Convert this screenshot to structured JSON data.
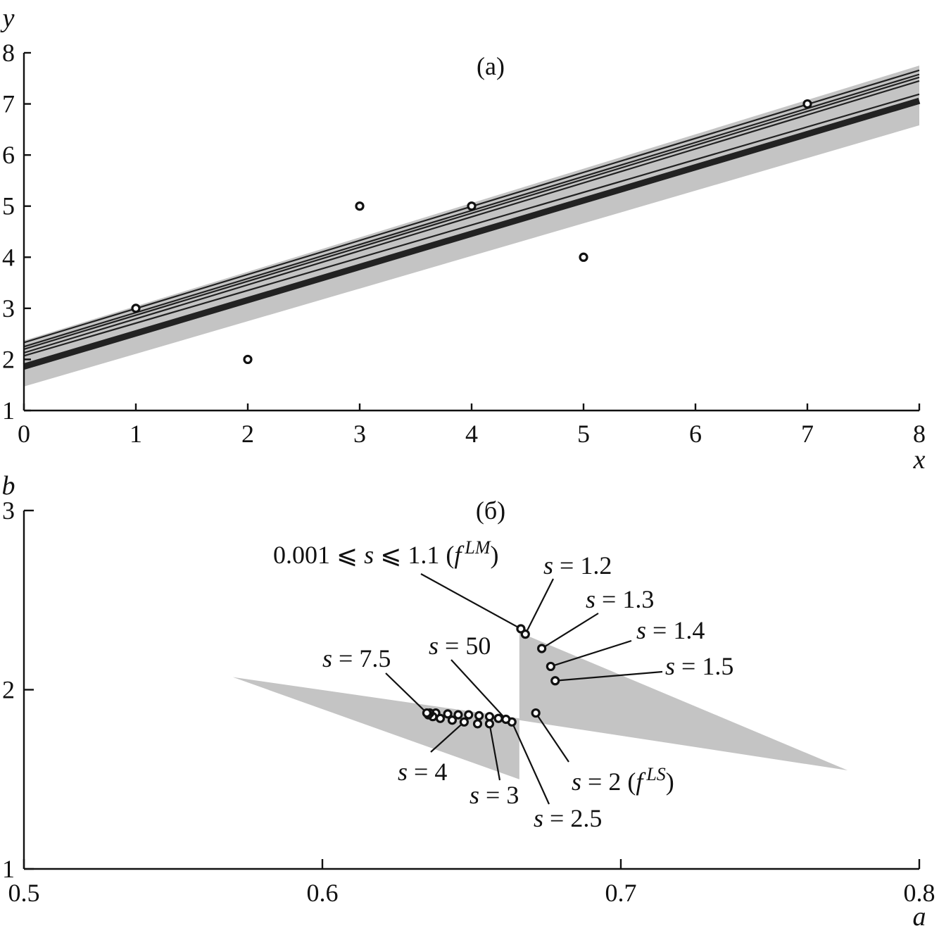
{
  "chart_data": [
    {
      "type": "scatter",
      "title": "(a)",
      "xlabel": "x",
      "ylabel": "y",
      "xlim": [
        0,
        8
      ],
      "ylim": [
        1,
        8
      ],
      "xticks": [
        0,
        1,
        2,
        3,
        4,
        5,
        6,
        7,
        8
      ],
      "yticks": [
        1,
        2,
        3,
        4,
        5,
        6,
        7,
        8
      ],
      "grid": false,
      "points": [
        {
          "x": 1,
          "y": 3
        },
        {
          "x": 2,
          "y": 2
        },
        {
          "x": 3,
          "y": 5
        },
        {
          "x": 4,
          "y": 5
        },
        {
          "x": 5,
          "y": 4
        },
        {
          "x": 7,
          "y": 7
        }
      ],
      "band": {
        "x": [
          0,
          8
        ],
        "upper": [
          2.37,
          7.75
        ],
        "lower": [
          1.47,
          6.58
        ]
      },
      "lines": [
        {
          "intercept": 2.33,
          "slope": 0.666,
          "weight": "thin"
        },
        {
          "intercept": 2.25,
          "slope": 0.666,
          "weight": "thin"
        },
        {
          "intercept": 2.2,
          "slope": 0.665,
          "weight": "thin"
        },
        {
          "intercept": 2.13,
          "slope": 0.665,
          "weight": "thin"
        },
        {
          "intercept": 2.07,
          "slope": 0.64,
          "weight": "thin"
        },
        {
          "intercept": 1.86,
          "slope": 0.65,
          "weight": "thick"
        }
      ]
    },
    {
      "type": "scatter",
      "title": "(б)",
      "xlabel": "a",
      "ylabel": "b",
      "xlim": [
        0.5,
        0.8
      ],
      "ylim": [
        1,
        3
      ],
      "xticks": [
        "0.5",
        "0.6",
        "0.7",
        "0.8"
      ],
      "yticks": [
        "1",
        "2",
        "3"
      ],
      "grid": false,
      "regions": [
        {
          "a": [
            0.57,
            0.666,
            0.666
          ],
          "b": [
            2.07,
            1.84,
            1.5
          ]
        },
        {
          "a": [
            0.666,
            0.666,
            0.776
          ],
          "b": [
            2.32,
            1.83,
            1.55
          ]
        }
      ],
      "points": [
        {
          "a": 0.6665,
          "b": 2.34
        },
        {
          "a": 0.668,
          "b": 2.31
        },
        {
          "a": 0.6735,
          "b": 2.23
        },
        {
          "a": 0.6765,
          "b": 2.13
        },
        {
          "a": 0.678,
          "b": 2.05
        },
        {
          "a": 0.6715,
          "b": 1.87
        },
        {
          "a": 0.6635,
          "b": 1.82
        },
        {
          "a": 0.6615,
          "b": 1.835
        },
        {
          "a": 0.659,
          "b": 1.84
        },
        {
          "a": 0.656,
          "b": 1.85
        },
        {
          "a": 0.656,
          "b": 1.81
        },
        {
          "a": 0.6525,
          "b": 1.855
        },
        {
          "a": 0.652,
          "b": 1.81
        },
        {
          "a": 0.649,
          "b": 1.86
        },
        {
          "a": 0.6475,
          "b": 1.82
        },
        {
          "a": 0.6455,
          "b": 1.86
        },
        {
          "a": 0.6435,
          "b": 1.83
        },
        {
          "a": 0.642,
          "b": 1.865
        },
        {
          "a": 0.6395,
          "b": 1.84
        },
        {
          "a": 0.638,
          "b": 1.87
        },
        {
          "a": 0.637,
          "b": 1.85
        },
        {
          "a": 0.636,
          "b": 1.87
        },
        {
          "a": 0.6355,
          "b": 1.86
        },
        {
          "a": 0.635,
          "b": 1.87
        }
      ],
      "annotations": [
        {
          "id": "lm",
          "parts": [
            {
              "t": "0.001 ⩽ ",
              "i": false
            },
            {
              "t": "s",
              "i": true
            },
            {
              "t": " ⩽ 1.1 (",
              "i": false
            },
            {
              "t": "f",
              "i": true
            },
            {
              "t": "LM",
              "i": true,
              "sup": true
            },
            {
              "t": ")",
              "i": false
            }
          ],
          "target": {
            "a": 0.6665,
            "b": 2.34
          }
        },
        {
          "id": "s12",
          "parts": [
            {
              "t": "s",
              "i": true
            },
            {
              "t": " = 1.2",
              "i": false
            }
          ],
          "target": {
            "a": 0.668,
            "b": 2.31
          }
        },
        {
          "id": "s13",
          "parts": [
            {
              "t": "s",
              "i": true
            },
            {
              "t": " = 1.3",
              "i": false
            }
          ],
          "target": {
            "a": 0.6735,
            "b": 2.23
          }
        },
        {
          "id": "s14",
          "parts": [
            {
              "t": "s",
              "i": true
            },
            {
              "t": " = 1.4",
              "i": false
            }
          ],
          "target": {
            "a": 0.6765,
            "b": 2.13
          }
        },
        {
          "id": "s15",
          "parts": [
            {
              "t": "s",
              "i": true
            },
            {
              "t": " = 1.5",
              "i": false
            }
          ],
          "target": {
            "a": 0.678,
            "b": 2.05
          }
        },
        {
          "id": "s50",
          "parts": [
            {
              "t": "s",
              "i": true
            },
            {
              "t": " = 50",
              "i": false
            }
          ],
          "target": {
            "a": 0.6615,
            "b": 1.835
          }
        },
        {
          "id": "s75",
          "parts": [
            {
              "t": "s",
              "i": true
            },
            {
              "t": " = 7.5",
              "i": false
            }
          ],
          "target": {
            "a": 0.635,
            "b": 1.87
          }
        },
        {
          "id": "s2",
          "parts": [
            {
              "t": "s",
              "i": true
            },
            {
              "t": " = 2 (",
              "i": false
            },
            {
              "t": "f",
              "i": true
            },
            {
              "t": "LS",
              "i": true,
              "sup": true
            },
            {
              "t": ")",
              "i": false
            }
          ],
          "target": {
            "a": 0.6715,
            "b": 1.87
          }
        },
        {
          "id": "s4",
          "parts": [
            {
              "t": "s",
              "i": true
            },
            {
              "t": " = 4",
              "i": false
            }
          ],
          "target": {
            "a": 0.6475,
            "b": 1.82
          }
        },
        {
          "id": "s3",
          "parts": [
            {
              "t": "s",
              "i": true
            },
            {
              "t": " = 3",
              "i": false
            }
          ],
          "target": {
            "a": 0.656,
            "b": 1.81
          }
        },
        {
          "id": "s25",
          "parts": [
            {
              "t": "s",
              "i": true
            },
            {
              "t": " = 2.5",
              "i": false
            }
          ],
          "target": {
            "a": 0.6635,
            "b": 1.82
          }
        }
      ]
    }
  ]
}
